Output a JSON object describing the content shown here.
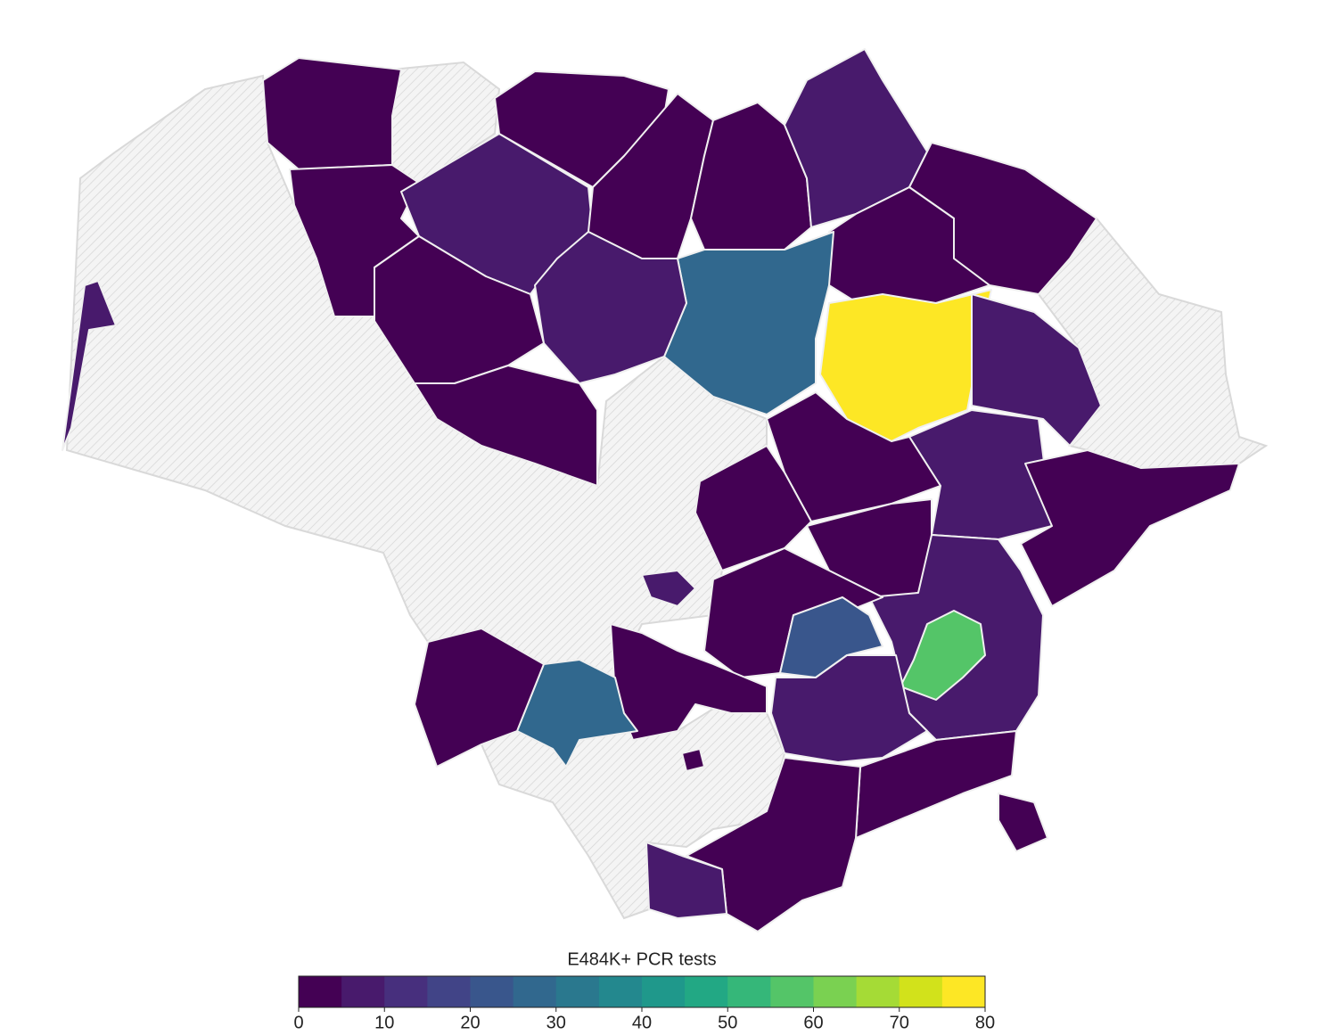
{
  "chart_data": {
    "type": "choropleth",
    "values": [
      null,
      null,
      null,
      null,
      2,
      2,
      7,
      2,
      2,
      2,
      7,
      2,
      2,
      27,
      78,
      7,
      2,
      2,
      7,
      7,
      2,
      2,
      2,
      2,
      7,
      57,
      2,
      22,
      7,
      7,
      2,
      27,
      2,
      2,
      2,
      2,
      2,
      7,
      7
    ],
    "colorbar": {
      "title": "E484K+ PCR tests",
      "lim": [
        0,
        80
      ],
      "ticks": [
        0,
        10,
        20,
        30,
        40,
        50,
        60,
        70,
        80
      ],
      "colors": [
        "#440154",
        "#481a6c",
        "#472f7d",
        "#414487",
        "#39568c",
        "#31688e",
        "#2a788e",
        "#23888e",
        "#1f988b",
        "#22a884",
        "#35b779",
        "#54c568",
        "#7ad151",
        "#a5db36",
        "#d2e21b",
        "#fde725"
      ]
    }
  }
}
